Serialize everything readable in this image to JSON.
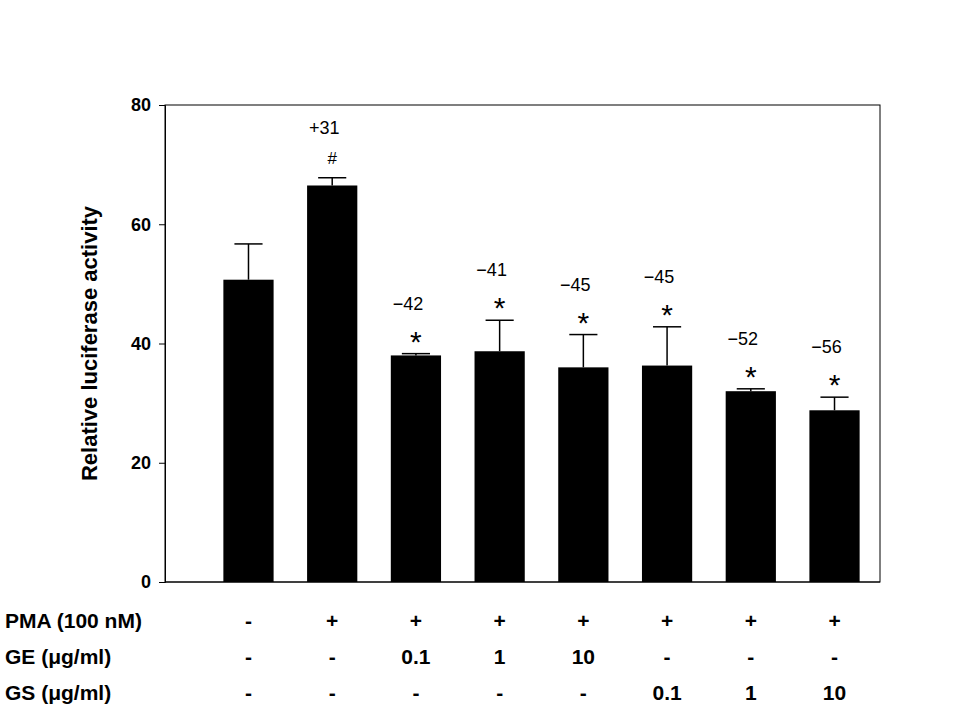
{
  "chart_data": {
    "type": "bar",
    "y_label": "Relative luciferase activity",
    "categories": [
      null,
      null,
      null,
      null,
      null,
      null,
      null,
      null
    ],
    "values": [
      50.7,
      66.5,
      38.0,
      38.7,
      36.0,
      36.3,
      32.0,
      28.8
    ],
    "errors": [
      6.0,
      1.3,
      0.3,
      5.2,
      5.5,
      6.5,
      0.4,
      2.2
    ],
    "color": "#000000",
    "ylim": [
      0,
      80
    ],
    "yticks": [
      0,
      20,
      40,
      60,
      80
    ],
    "grid": false,
    "annotations": [
      null,
      "+31",
      "−42",
      "−41",
      "−45",
      "−45",
      "−52",
      "−56"
    ],
    "significance": [
      null,
      "#",
      "*",
      "*",
      "*",
      "*",
      "*",
      "*"
    ],
    "condition_rows": [
      {
        "label": "PMA (100 nM)",
        "values": [
          "-",
          "+",
          "+",
          "+",
          "+",
          "+",
          "+",
          "+"
        ]
      },
      {
        "label": "GE (μg/ml)",
        "values": [
          "-",
          "-",
          "0.1",
          "1",
          "10",
          "-",
          "-",
          "-"
        ]
      },
      {
        "label": "GS (μg/ml)",
        "values": [
          "-",
          "-",
          "-",
          "-",
          "-",
          "0.1",
          "1",
          "10"
        ]
      }
    ]
  }
}
